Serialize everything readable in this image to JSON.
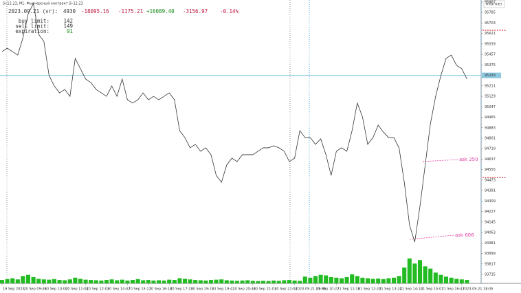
{
  "chart_data": {
    "type": "line",
    "title": "Si-12.23, M1: Фьючерсный контракт Si-12.23",
    "categories": [
      "19 Sep 2023",
      null,
      null,
      null,
      "20 Sep 09:46",
      null,
      null,
      null,
      "20 Sep 10:00",
      null,
      null,
      null,
      "20 Sep 11:04",
      null,
      null,
      null,
      "20 Sep 12:03",
      null,
      null,
      null,
      "20 Sep 14:07",
      null,
      null,
      null,
      "20 Sep 15:11",
      null,
      null,
      null,
      "20 Sep 16:18",
      null,
      null,
      null,
      "20 Sep 17:19",
      null,
      null,
      null,
      "20 Sep 19:23",
      null,
      null,
      null,
      "20 Sep 19:42",
      null,
      null,
      null,
      "20 Sep 20:46",
      null,
      null,
      null,
      "20 Sep 21:03",
      null,
      null,
      null,
      "20 Sep 22:04",
      null,
      null,
      null,
      "2023.09.21 09:05",
      null,
      null,
      null,
      "21 Sep 10:22",
      null,
      null,
      null,
      "21 Sep 11:16",
      null,
      null,
      null,
      "21 Sep 12:20",
      null,
      null,
      null,
      "21 Sep 13:24",
      null,
      null,
      null,
      "21 Sep 14:10",
      null,
      null,
      null,
      "21 Sep 15:07",
      null,
      null,
      null,
      "21 Sep 16:41",
      null,
      null,
      null,
      "2023.09.21 18:05",
      null,
      null,
      null
    ],
    "series": [
      {
        "type": "line",
        "color": "#333333",
        "values": [
          95479,
          95506,
          95479,
          95452,
          95587,
          95775,
          95856,
          95614,
          95560,
          95291,
          95210,
          95156,
          95183,
          95129,
          95426,
          95345,
          95264,
          95237,
          95183,
          95156,
          95129,
          95210,
          95129,
          95264,
          95102,
          95076,
          95102,
          95156,
          95102,
          95129,
          95102,
          95129,
          95156,
          95102,
          94860,
          94806,
          94726,
          94753,
          94699,
          94726,
          94672,
          94510,
          94456,
          94591,
          94645,
          94618,
          94672,
          94672,
          94672,
          94699,
          94726,
          94726,
          94742,
          94726,
          94699,
          94618,
          94645,
          94860,
          94806,
          94806,
          94753,
          94796,
          94672,
          94510,
          94699,
          94726,
          94699,
          94860,
          95076,
          94968,
          94753,
          94806,
          94903,
          94849,
          94806,
          94806,
          94726,
          94456,
          94123,
          93988,
          94268,
          94591,
          94914,
          95129,
          95291,
          95426,
          95452,
          95372,
          95345,
          95264,
          null,
          null
        ]
      },
      {
        "type": "bar",
        "axis": "y2",
        "color": "#22bb22",
        "values": [
          120,
          150,
          180,
          140,
          260,
          300,
          220,
          160,
          140,
          130,
          150,
          120,
          110,
          140,
          200,
          160,
          130,
          120,
          110,
          100,
          120,
          140,
          110,
          130,
          100,
          120,
          150,
          110,
          120,
          100,
          110,
          100,
          130,
          120,
          180,
          160,
          140,
          120,
          110,
          100,
          120,
          130,
          140,
          110,
          100,
          90,
          100,
          110,
          90,
          80,
          90,
          80,
          100,
          90,
          110,
          120,
          100,
          90,
          240,
          200,
          260,
          300,
          280,
          220,
          200,
          180,
          220,
          320,
          260,
          200,
          180,
          160,
          170,
          150,
          180,
          200,
          260,
          560,
          880,
          700,
          820,
          600,
          520,
          380,
          300,
          240,
          200,
          160,
          140,
          120,
          null,
          null
        ]
      }
    ],
    "ylim": [
      93665,
      95883
    ],
    "yticks": [
      95867,
      95785,
      95703,
      95621,
      95539,
      95457,
      95375,
      95211,
      95129,
      95047,
      94965,
      94883,
      94801,
      94719,
      94637,
      94555,
      94473,
      94391,
      94309,
      94227,
      94145,
      94063,
      93981,
      93899,
      93817,
      93735
    ],
    "y2lim": [
      0,
      10000
    ],
    "bid": 95293,
    "orders": [
      95646,
      94494
    ],
    "annotations": [
      "ask 250",
      "ask 608"
    ]
  },
  "info": {
    "date": "2023.09.21 (vr):",
    "count": "4930",
    "v1": "-18095.16",
    "v2": "-1175.21",
    "v3": "+16089.40",
    "v4": "-3156.97",
    "pct": "-0.14%",
    "buy_label": "buy limit:",
    "buy": "142",
    "sell_label": "sell limit:",
    "sell": "149",
    "exp_label": "expiration:",
    "exp": "91"
  },
  "informer": "Informer"
}
